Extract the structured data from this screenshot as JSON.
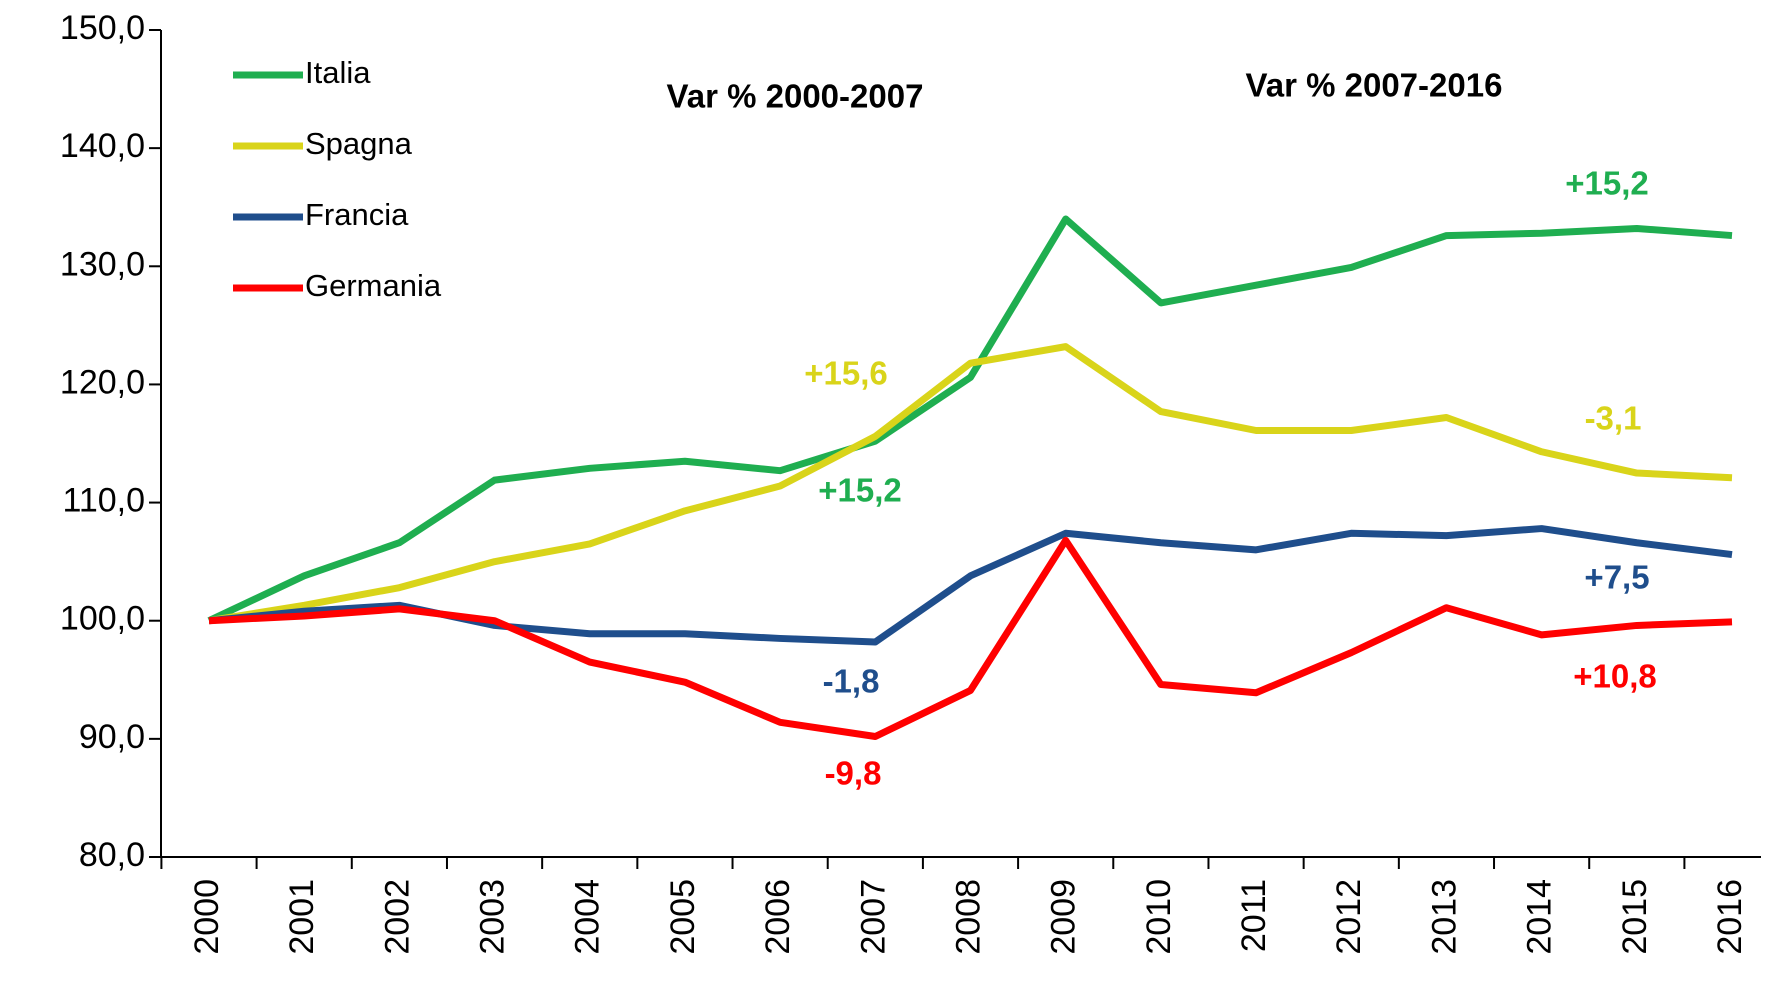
{
  "chart_data": {
    "type": "line",
    "categories": [
      "2000",
      "2001",
      "2002",
      "2003",
      "2004",
      "2005",
      "2006",
      "2007",
      "2008",
      "2009",
      "2010",
      "2011",
      "2012",
      "2013",
      "2014",
      "2015",
      "2016"
    ],
    "series": [
      {
        "name": "Italia",
        "color": "#1fae50",
        "values": [
          100,
          103.8,
          106.6,
          111.9,
          112.9,
          113.5,
          112.7,
          115.2,
          120.6,
          134.0,
          126.9,
          128.4,
          129.9,
          132.6,
          132.8,
          133.2,
          132.6
        ]
      },
      {
        "name": "Spagna",
        "color": "#d9d41a",
        "values": [
          100,
          101.3,
          102.8,
          105.0,
          106.5,
          109.3,
          111.4,
          115.6,
          121.8,
          123.2,
          117.7,
          116.1,
          116.1,
          117.2,
          114.3,
          112.5,
          112.1
        ]
      },
      {
        "name": "Francia",
        "color": "#1f4e8c",
        "values": [
          100,
          100.8,
          101.3,
          99.6,
          98.9,
          98.9,
          98.5,
          98.2,
          103.8,
          107.4,
          106.6,
          106.0,
          107.4,
          107.2,
          107.8,
          106.6,
          105.6
        ]
      },
      {
        "name": "Germania",
        "color": "#ff0000",
        "values": [
          100,
          100.4,
          101.0,
          100.0,
          96.5,
          94.8,
          91.4,
          90.2,
          94.1,
          106.8,
          94.6,
          93.9,
          97.3,
          101.1,
          98.8,
          99.6,
          99.9
        ]
      }
    ],
    "ylim": [
      80,
      150
    ],
    "yticks": [
      {
        "value": 80,
        "label": "80,0"
      },
      {
        "value": 90,
        "label": "90,0"
      },
      {
        "value": 100,
        "label": "100,0"
      },
      {
        "value": 110,
        "label": "110,0"
      },
      {
        "value": 120,
        "label": "120,0"
      },
      {
        "value": 130,
        "label": "130,0"
      },
      {
        "value": 140,
        "label": "140,0"
      },
      {
        "value": 150,
        "label": "150,0"
      }
    ],
    "legend": "top-left",
    "annotations": [
      {
        "text": "Var % 2000-2007",
        "color": "#000000"
      },
      {
        "text": "Var % 2007-2016",
        "color": "#000000"
      },
      {
        "text": "+15,6",
        "color": "#d9d41a"
      },
      {
        "text": "+15,2",
        "color": "#1fae50"
      },
      {
        "text": "-1,8",
        "color": "#1f4e8c"
      },
      {
        "text": "-9,8",
        "color": "#ff0000"
      },
      {
        "text": "+15,2",
        "color": "#1fae50"
      },
      {
        "text": "-3,1",
        "color": "#d9d41a"
      },
      {
        "text": "+7,5",
        "color": "#1f4e8c"
      },
      {
        "text": "+10,8",
        "color": "#ff0000"
      }
    ]
  }
}
